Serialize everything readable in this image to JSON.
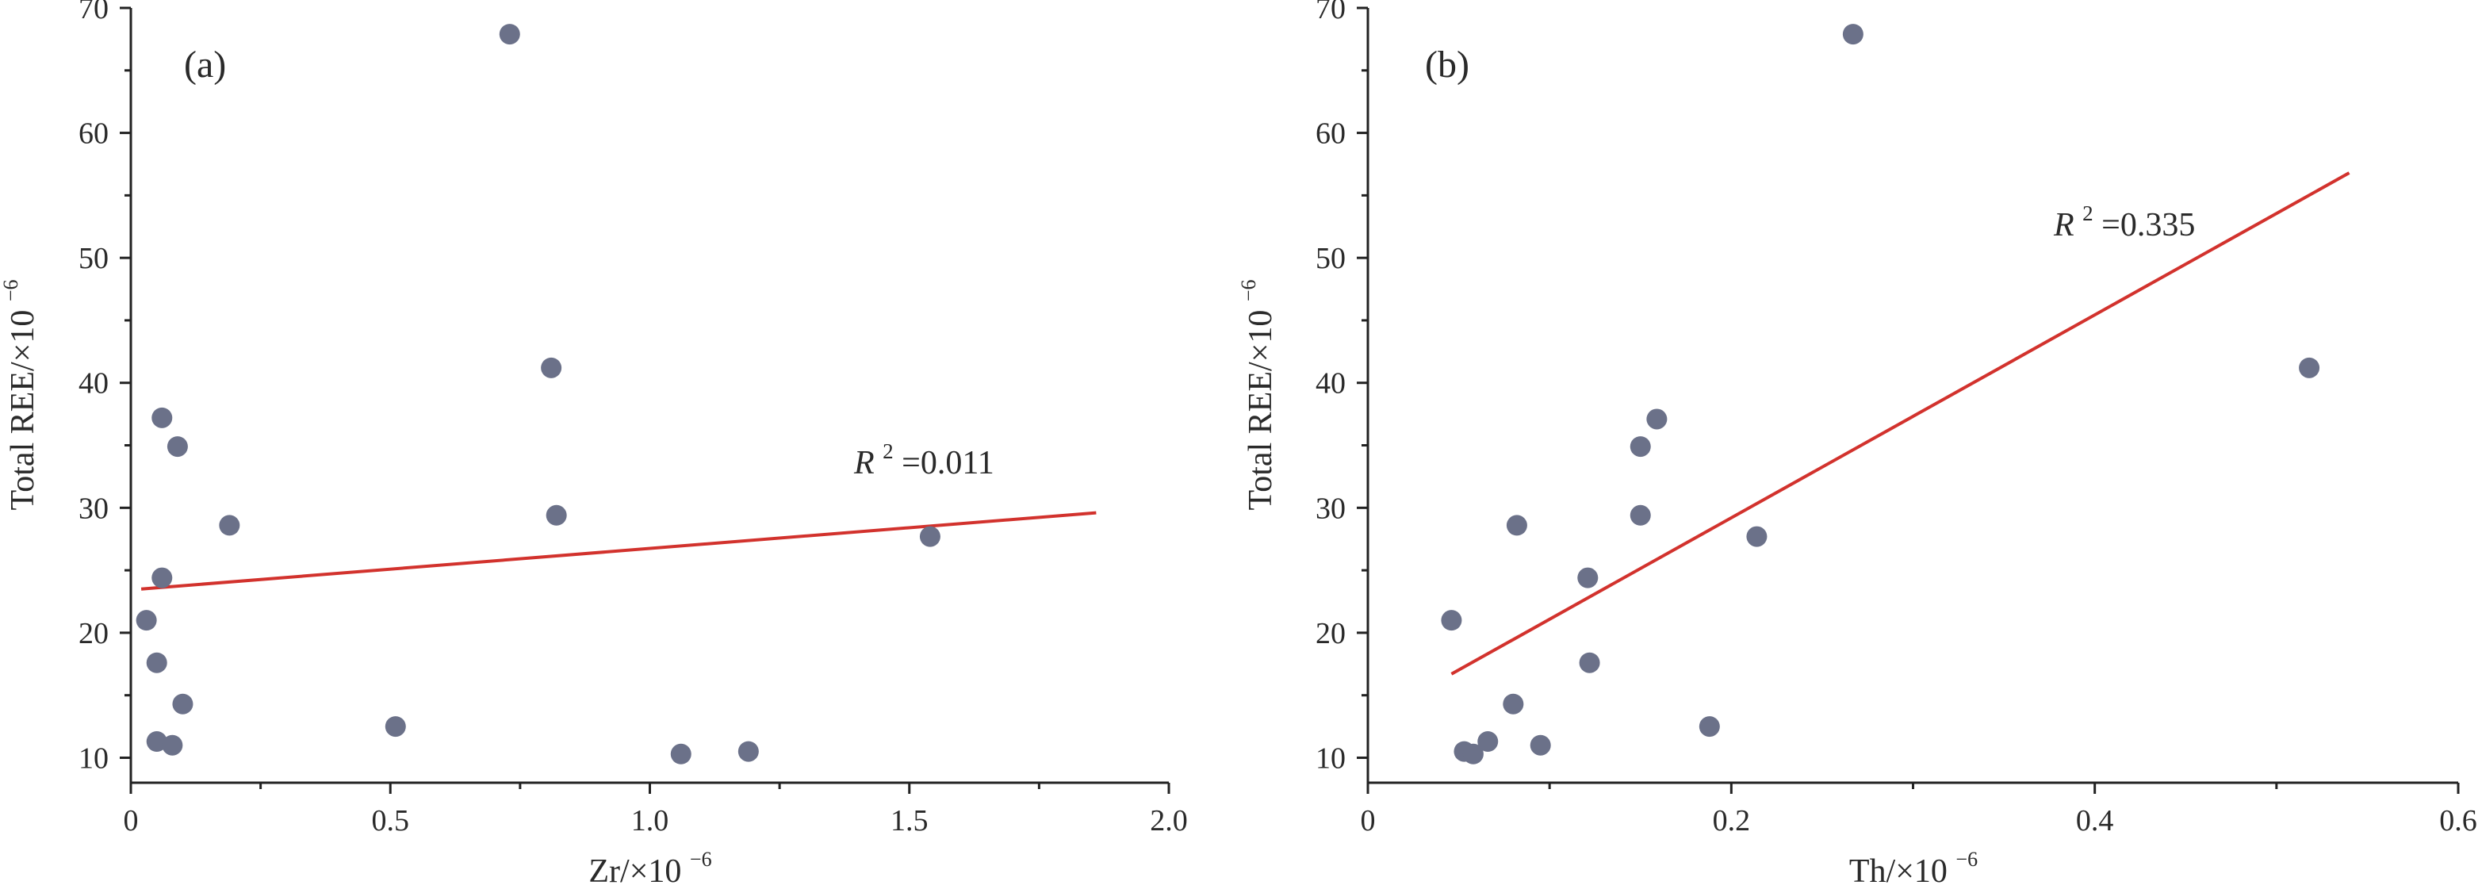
{
  "chart_data": [
    {
      "type": "scatter",
      "panel_label": "(a)",
      "xlabel": "Zr/×10",
      "xlabel_sup": "−6",
      "ylabel": "Total REE/×10",
      "ylabel_sup": "−6",
      "xlim": [
        0,
        2.0
      ],
      "ylim": [
        8,
        70
      ],
      "xticks": [
        0,
        0.5,
        1.0,
        1.5,
        2.0
      ],
      "xtick_labels": [
        "0",
        "0.5",
        "1.0",
        "1.5",
        "2.0"
      ],
      "yticks": [
        10,
        20,
        30,
        40,
        50,
        60,
        70
      ],
      "ytick_labels": [
        "10",
        "20",
        "30",
        "40",
        "50",
        "60",
        "70"
      ],
      "marker_color": "#6b7189",
      "points": {
        "x": [
          0.73,
          0.81,
          0.06,
          0.09,
          0.19,
          0.82,
          1.54,
          0.06,
          0.03,
          0.05,
          0.1,
          0.51,
          0.05,
          0.08,
          1.06,
          1.19
        ],
        "y": [
          67.9,
          41.2,
          37.2,
          34.9,
          28.6,
          29.4,
          27.7,
          24.4,
          21.0,
          17.6,
          14.3,
          12.5,
          11.3,
          11.0,
          10.3,
          10.5
        ]
      },
      "fit": {
        "x": [
          0.02,
          1.86
        ],
        "y": [
          23.5,
          29.6
        ],
        "color": "#d2322d",
        "r2_prefix": "R",
        "r2_sup": "2",
        "r2_value": "=0.011"
      }
    },
    {
      "type": "scatter",
      "panel_label": "(b)",
      "xlabel": "Th/×10",
      "xlabel_sup": "−6",
      "ylabel": "Total REE/×10",
      "ylabel_sup": "−6",
      "xlim": [
        0,
        0.6
      ],
      "ylim": [
        8,
        70
      ],
      "xticks": [
        0,
        0.2,
        0.4,
        0.6
      ],
      "xtick_labels": [
        "0",
        "0.2",
        "0.4",
        "0.6"
      ],
      "yticks": [
        10,
        20,
        30,
        40,
        50,
        60,
        70
      ],
      "ytick_labels": [
        "10",
        "20",
        "30",
        "40",
        "50",
        "60",
        "70"
      ],
      "marker_color": "#6b7189",
      "points": {
        "x": [
          0.267,
          0.518,
          0.159,
          0.15,
          0.082,
          0.15,
          0.214,
          0.121,
          0.046,
          0.122,
          0.08,
          0.188,
          0.066,
          0.095,
          0.053,
          0.058
        ],
        "y": [
          67.9,
          41.2,
          37.1,
          34.9,
          28.6,
          29.4,
          27.7,
          24.4,
          21.0,
          17.6,
          14.3,
          12.5,
          11.3,
          11.0,
          10.5,
          10.3
        ]
      },
      "fit": {
        "x": [
          0.046,
          0.54
        ],
        "y": [
          16.7,
          56.8
        ],
        "color": "#d2322d",
        "r2_prefix": "R",
        "r2_sup": "2",
        "r2_value": "=0.335"
      }
    }
  ]
}
